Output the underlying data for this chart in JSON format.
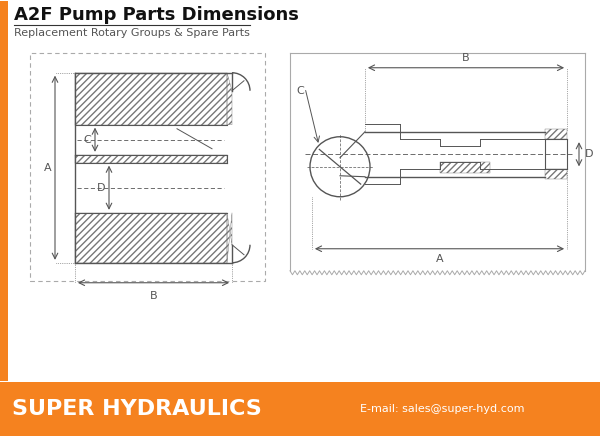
{
  "title": "A2F Pump Parts Dimensions",
  "subtitle": "Replacement Rotary Groups & Spare Parts",
  "title_fontsize": 13,
  "subtitle_fontsize": 8,
  "footer_text": "SUPER HYDRAULICS",
  "footer_email": "E-mail: sales@super-hyd.com",
  "footer_bg": "#F5821F",
  "footer_text_color": "#FFFFFF",
  "line_color": "#555555",
  "hatch_color": "#777777",
  "bg_color": "#FFFFFF",
  "label_fontsize": 8,
  "border_gray": "#AAAAAA",
  "orange_border": "#F5821F"
}
